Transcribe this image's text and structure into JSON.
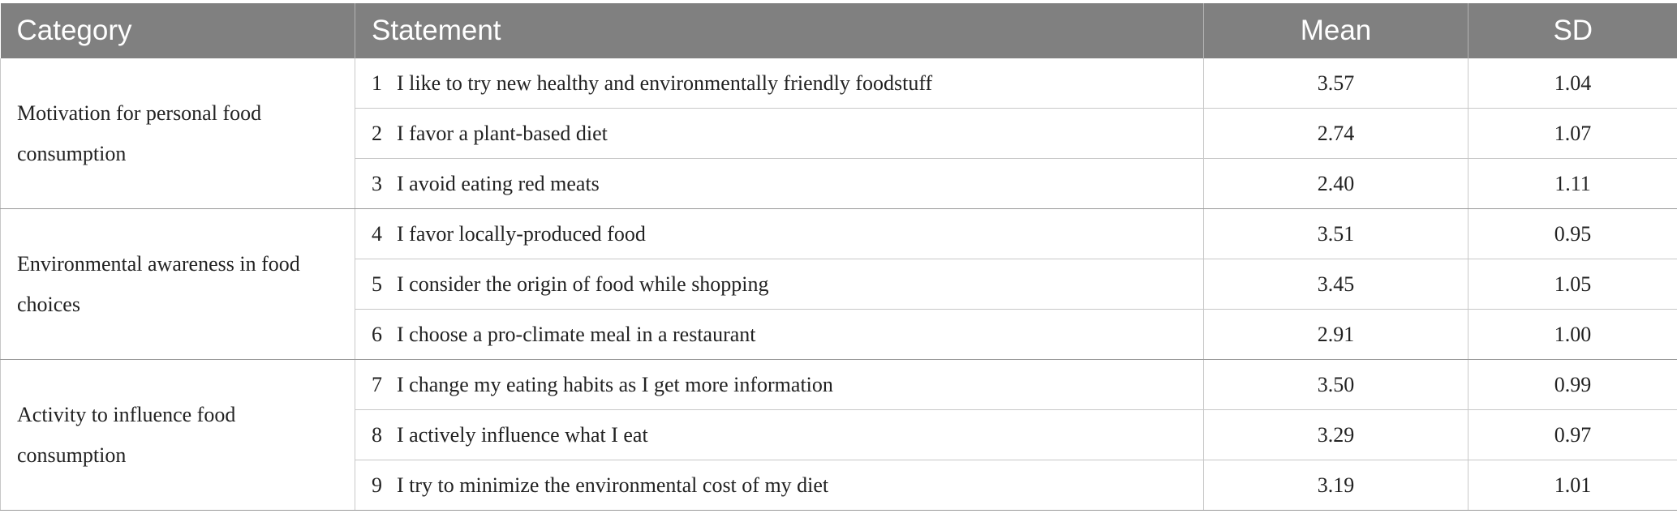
{
  "table": {
    "headers": {
      "category": "Category",
      "statement": "Statement",
      "mean": "Mean",
      "sd": "SD"
    },
    "groups": [
      {
        "category": "Motivation for personal food consumption",
        "rows": [
          {
            "num": "1",
            "statement": "I like to try new healthy and environmentally friendly foodstuff",
            "mean": "3.57",
            "sd": "1.04"
          },
          {
            "num": "2",
            "statement": "I favor a plant-based diet",
            "mean": "2.74",
            "sd": "1.07"
          },
          {
            "num": "3",
            "statement": "I avoid eating red meats",
            "mean": "2.40",
            "sd": "1.11"
          }
        ]
      },
      {
        "category": "Environmental awareness in food choices",
        "rows": [
          {
            "num": "4",
            "statement": "I favor locally-produced food",
            "mean": "3.51",
            "sd": "0.95"
          },
          {
            "num": "5",
            "statement": "I consider the origin of food while shopping",
            "mean": "3.45",
            "sd": "1.05"
          },
          {
            "num": "6",
            "statement": "I choose a pro-climate meal in a restaurant",
            "mean": "2.91",
            "sd": "1.00"
          }
        ]
      },
      {
        "category": "Activity to influence food consumption",
        "rows": [
          {
            "num": "7",
            "statement": "I change my eating habits as I get more information",
            "mean": "3.50",
            "sd": "0.99"
          },
          {
            "num": "8",
            "statement": "I actively influence what I eat",
            "mean": "3.29",
            "sd": "0.97"
          },
          {
            "num": "9",
            "statement": "I try to minimize the environmental cost of my diet",
            "mean": "3.19",
            "sd": "1.01"
          }
        ]
      }
    ]
  }
}
